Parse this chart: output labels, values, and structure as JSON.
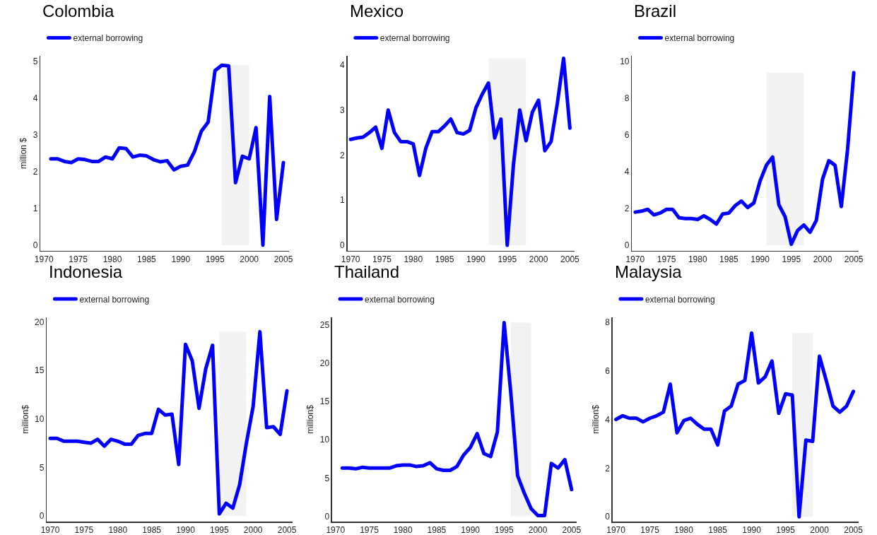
{
  "chart_data": [
    {
      "type": "line",
      "title": "Colombia",
      "ylabel": "million $",
      "legend": "top left",
      "xlim": [
        1969.5,
        2005.8
      ],
      "xticks": [
        1970,
        1975,
        1980,
        1985,
        1990,
        1995,
        2000,
        2005
      ],
      "ylim": [
        -0.15,
        5.15
      ],
      "yticks": [
        0,
        1,
        2,
        3,
        4,
        5
      ],
      "bands": [
        {
          "axis": "x",
          "from": 1996,
          "to": 2000,
          "color": "#f2f2f2"
        }
      ],
      "x": [
        1971,
        1972,
        1973,
        1974,
        1975,
        1976,
        1977,
        1978,
        1979,
        1980,
        1981,
        1982,
        1983,
        1984,
        1985,
        1986,
        1987,
        1988,
        1989,
        1990,
        1991,
        1992,
        1993,
        1994,
        1995,
        1996,
        1997,
        1998,
        1999,
        2000,
        2001,
        2002,
        2003,
        2004,
        2005
      ],
      "series": [
        {
          "name": "external borrowing",
          "color": "#0000ff",
          "values": [
            2.35,
            2.35,
            2.28,
            2.25,
            2.35,
            2.33,
            2.28,
            2.28,
            2.4,
            2.35,
            2.65,
            2.63,
            2.4,
            2.45,
            2.43,
            2.33,
            2.27,
            2.3,
            2.05,
            2.15,
            2.18,
            2.55,
            3.1,
            3.35,
            4.75,
            4.9,
            4.88,
            1.7,
            2.42,
            2.35,
            3.2,
            0,
            4.05,
            0.7,
            2.25
          ]
        }
      ]
    },
    {
      "type": "line",
      "title": "Mexico",
      "legend": "top left",
      "xlim": [
        1969.5,
        2005.8
      ],
      "xticks": [
        1970,
        1975,
        1980,
        1985,
        1990,
        1995,
        2000,
        2005
      ],
      "ylim": [
        -0.12,
        4.2
      ],
      "yticks": [
        0,
        1,
        2,
        3,
        4
      ],
      "bands": [
        {
          "axis": "x",
          "from": 1992,
          "to": 1998,
          "color": "#f2f2f2"
        }
      ],
      "x": [
        1970,
        1971,
        1972,
        1973,
        1974,
        1975,
        1976,
        1977,
        1978,
        1979,
        1980,
        1981,
        1982,
        1983,
        1984,
        1985,
        1986,
        1987,
        1988,
        1989,
        1990,
        1991,
        1992,
        1993,
        1994,
        1995,
        1996,
        1997,
        1998,
        1999,
        2000,
        2001,
        2002,
        2003,
        2004,
        2005
      ],
      "series": [
        {
          "name": "external borrowing",
          "color": "#0000ff",
          "values": [
            2.35,
            2.38,
            2.4,
            2.5,
            2.62,
            2.15,
            3.0,
            2.5,
            2.3,
            2.3,
            2.25,
            1.55,
            2.15,
            2.52,
            2.52,
            2.65,
            2.8,
            2.5,
            2.47,
            2.55,
            3.05,
            3.35,
            3.6,
            2.38,
            2.8,
            0,
            1.8,
            3.0,
            2.32,
            2.95,
            3.22,
            2.1,
            2.3,
            3.15,
            4.15,
            2.6
          ]
        }
      ]
    },
    {
      "type": "line",
      "title": "Brazil",
      "legend": "top left",
      "xlim": [
        1969.5,
        2005.8
      ],
      "xticks": [
        1970,
        1975,
        1980,
        1985,
        1990,
        1995,
        2000,
        2005
      ],
      "ylim": [
        -0.3,
        10.3
      ],
      "yticks": [
        0,
        2,
        4,
        6,
        8,
        10
      ],
      "bands": [
        {
          "axis": "x",
          "from": 1991,
          "to": 1997,
          "color": "#f2f2f2"
        }
      ],
      "x": [
        1970,
        1971,
        1972,
        1973,
        1974,
        1975,
        1976,
        1977,
        1978,
        1979,
        1980,
        1981,
        1982,
        1983,
        1984,
        1985,
        1986,
        1987,
        1988,
        1989,
        1990,
        1991,
        1992,
        1993,
        1994,
        1995,
        1996,
        1997,
        1998,
        1999,
        2000,
        2001,
        2002,
        2003,
        2004,
        2005
      ],
      "series": [
        {
          "name": "external borrowing",
          "color": "#0000ff",
          "values": [
            1.8,
            1.85,
            1.95,
            1.65,
            1.75,
            1.95,
            1.95,
            1.5,
            1.45,
            1.45,
            1.4,
            1.6,
            1.4,
            1.15,
            1.7,
            1.75,
            2.15,
            2.4,
            2.05,
            2.3,
            3.5,
            4.35,
            4.8,
            2.2,
            1.55,
            0.05,
            0.8,
            1.1,
            0.7,
            1.35,
            3.6,
            4.6,
            4.35,
            2.1,
            5.2,
            9.4
          ]
        }
      ]
    },
    {
      "type": "line",
      "title": "Indonesia",
      "ylabel": "million$",
      "legend": "top left",
      "xlim": [
        1969.5,
        2005.8
      ],
      "xticks": [
        1970,
        1975,
        1980,
        1985,
        1990,
        1995,
        2000,
        2005
      ],
      "ylim": [
        -0.6,
        20.5
      ],
      "yticks": [
        0,
        5,
        10,
        15,
        20
      ],
      "bands": [
        {
          "axis": "x",
          "from": 1995,
          "to": 1999,
          "color": "#f2f2f2"
        }
      ],
      "x": [
        1970,
        1971,
        1972,
        1973,
        1974,
        1975,
        1976,
        1977,
        1978,
        1979,
        1980,
        1981,
        1982,
        1983,
        1984,
        1985,
        1986,
        1987,
        1988,
        1989,
        1990,
        1991,
        1992,
        1993,
        1994,
        1995,
        1996,
        1997,
        1998,
        1999,
        2000,
        2001,
        2002,
        2003,
        2004,
        2005
      ],
      "series": [
        {
          "name": "external borrowing",
          "color": "#0000ff",
          "values": [
            8.0,
            8.0,
            7.7,
            7.7,
            7.7,
            7.6,
            7.5,
            7.9,
            7.2,
            7.9,
            7.7,
            7.4,
            7.4,
            8.3,
            8.5,
            8.5,
            11.0,
            10.4,
            10.5,
            5.3,
            17.7,
            16.0,
            11.1,
            15.2,
            17.6,
            0.2,
            1.3,
            0.8,
            3.2,
            7.5,
            11.3,
            19.0,
            9.1,
            9.2,
            8.4,
            12.9
          ]
        }
      ]
    },
    {
      "type": "line",
      "title": "Thailand",
      "ylabel": "million$",
      "legend": "top left",
      "xlim": [
        1969.5,
        2005.8
      ],
      "xticks": [
        1970,
        1975,
        1980,
        1985,
        1990,
        1995,
        2000,
        2005
      ],
      "ylim": [
        -0.7,
        26
      ],
      "yticks": [
        0,
        5,
        10,
        15,
        20,
        25
      ],
      "bands": [
        {
          "axis": "x",
          "from": 1996,
          "to": 1999,
          "color": "#f2f2f2"
        }
      ],
      "x": [
        1971,
        1972,
        1973,
        1974,
        1975,
        1976,
        1977,
        1978,
        1979,
        1980,
        1981,
        1982,
        1983,
        1984,
        1985,
        1986,
        1987,
        1988,
        1989,
        1990,
        1991,
        1992,
        1993,
        1994,
        1995,
        1996,
        1997,
        1998,
        1999,
        2000,
        2001,
        2002,
        2003,
        2004,
        2005
      ],
      "series": [
        {
          "name": "external borrowing",
          "color": "#0000ff",
          "values": [
            6.3,
            6.3,
            6.2,
            6.4,
            6.3,
            6.3,
            6.3,
            6.3,
            6.6,
            6.7,
            6.7,
            6.5,
            6.6,
            7.0,
            6.2,
            6.0,
            6.0,
            6.5,
            8.0,
            9.0,
            10.8,
            8.2,
            7.8,
            11.0,
            25.3,
            16.0,
            5.3,
            3.0,
            1.0,
            0.1,
            0.1,
            6.9,
            6.3,
            7.4,
            3.5
          ]
        }
      ]
    },
    {
      "type": "line",
      "title": "Malaysia",
      "ylabel": "million$",
      "legend": "top left",
      "xlim": [
        1969.5,
        2005.8
      ],
      "xticks": [
        1970,
        1975,
        1980,
        1985,
        1990,
        1995,
        2000,
        2005
      ],
      "ylim": [
        -0.2,
        8.2
      ],
      "yticks": [
        0,
        2,
        4,
        6,
        8
      ],
      "bands": [
        {
          "axis": "x",
          "from": 1996,
          "to": 1999,
          "color": "#f2f2f2"
        }
      ],
      "x": [
        1970,
        1971,
        1972,
        1973,
        1974,
        1975,
        1976,
        1977,
        1978,
        1979,
        1980,
        1981,
        1982,
        1983,
        1984,
        1985,
        1986,
        1987,
        1988,
        1989,
        1990,
        1991,
        1992,
        1993,
        1994,
        1995,
        1996,
        1997,
        1998,
        1999,
        2000,
        2001,
        2002,
        2003,
        2004,
        2005
      ],
      "series": [
        {
          "name": "external borrowing",
          "color": "#0000ff",
          "values": [
            4.0,
            4.15,
            4.05,
            4.05,
            3.9,
            4.05,
            4.15,
            4.3,
            5.45,
            3.45,
            3.95,
            4.05,
            3.8,
            3.6,
            3.6,
            2.95,
            4.35,
            4.55,
            5.45,
            5.6,
            7.55,
            5.5,
            5.75,
            6.4,
            4.25,
            5.05,
            5.0,
            0,
            3.15,
            3.1,
            6.6,
            5.6,
            4.55,
            4.3,
            4.55,
            5.15
          ]
        }
      ]
    }
  ]
}
